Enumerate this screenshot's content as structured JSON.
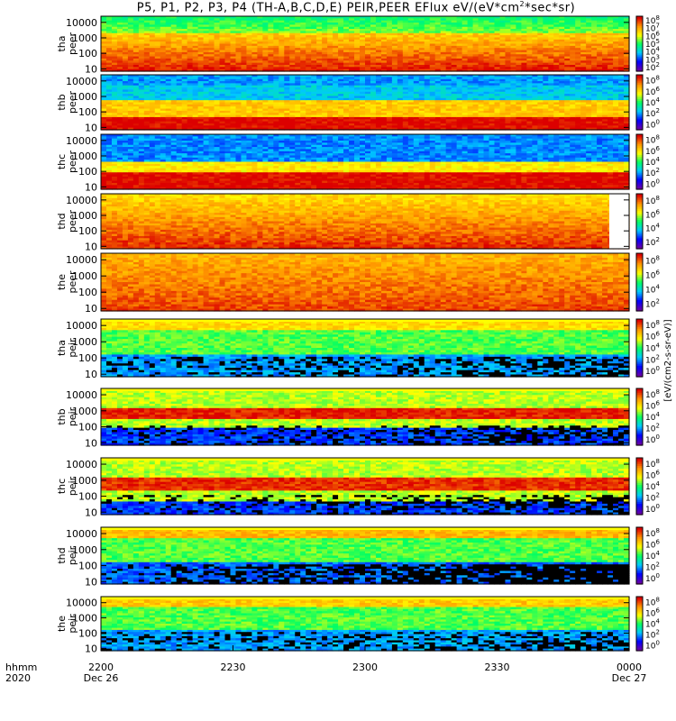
{
  "figure": {
    "title_main": "P5, P1, P2, P3, P4 (TH-A,B,C,D,E) PEIR,PEER EFlux eV/(eV*cm",
    "title_sup": "2",
    "title_end": "*sec*sr)",
    "time_row_label": "hhmm",
    "year_row_label": "2020",
    "cbar_unit_label": "[eV/(cm2-s-sr-eV)]",
    "cbar_unit_label_plain": "eV/(cm^2-s-sr-eV) (4)"
  },
  "chart_data": {
    "type": "heatmap",
    "title": "P5, P1, P2, P3, P4 (TH-A,B,C,D,E) PEIR,PEER EFlux eV/(eV*cm^2*sec*sr)",
    "x_ticks": [
      {
        "label": "2200",
        "date": "Dec 26"
      },
      {
        "label": "2230",
        "date": ""
      },
      {
        "label": "2300",
        "date": ""
      },
      {
        "label": "2330",
        "date": ""
      },
      {
        "label": "0000",
        "date": "Dec 27"
      }
    ],
    "y_scale": "log",
    "y_tick_labels": [
      "10",
      "100",
      "1000",
      "10000"
    ],
    "colormap": [
      "#7000a0",
      "#0000ff",
      "#00c8ff",
      "#00ff64",
      "#ffff00",
      "#ff9600",
      "#dc0000"
    ],
    "panels": [
      {
        "probe": "tha",
        "species": "peer",
        "ylim": [
          7,
          25000
        ],
        "cbar_ticks": [
          "10^2",
          "10^3",
          "10^4",
          "10^5",
          "10^6",
          "10^7",
          "10^8"
        ]
      },
      {
        "probe": "thb",
        "species": "peer",
        "ylim": [
          7,
          25000
        ],
        "cbar_ticks": [
          "10^0",
          "10^2",
          "10^4",
          "10^6",
          "10^8"
        ]
      },
      {
        "probe": "thc",
        "species": "peer",
        "ylim": [
          7,
          25000
        ],
        "cbar_ticks": [
          "10^0",
          "10^2",
          "10^4",
          "10^6",
          "10^8"
        ]
      },
      {
        "probe": "thd",
        "species": "peer",
        "ylim": [
          7,
          25000
        ],
        "cbar_ticks": [
          "10^2",
          "10^4",
          "10^6",
          "10^8"
        ]
      },
      {
        "probe": "the",
        "species": "peer",
        "ylim": [
          7,
          25000
        ],
        "cbar_ticks": [
          "10^2",
          "10^4",
          "10^6",
          "10^8"
        ]
      },
      {
        "probe": "tha",
        "species": "peir",
        "ylim": [
          7,
          25000
        ],
        "cbar_ticks": [
          "10^0",
          "10^2",
          "10^4",
          "10^6",
          "10^8"
        ]
      },
      {
        "probe": "thb",
        "species": "peir",
        "ylim": [
          7,
          25000
        ],
        "cbar_ticks": [
          "10^0",
          "10^2",
          "10^4",
          "10^6",
          "10^8"
        ]
      },
      {
        "probe": "thc",
        "species": "peir",
        "ylim": [
          7,
          25000
        ],
        "cbar_ticks": [
          "10^0",
          "10^2",
          "10^4",
          "10^6",
          "10^8"
        ]
      },
      {
        "probe": "thd",
        "species": "peir",
        "ylim": [
          7,
          25000
        ],
        "cbar_ticks": [
          "10^0",
          "10^2",
          "10^4",
          "10^6",
          "10^8"
        ]
      },
      {
        "probe": "the",
        "species": "peir",
        "ylim": [
          7,
          25000
        ],
        "cbar_ticks": [
          "10^0",
          "10^2",
          "10^4",
          "10^6",
          "10^8"
        ]
      }
    ]
  }
}
